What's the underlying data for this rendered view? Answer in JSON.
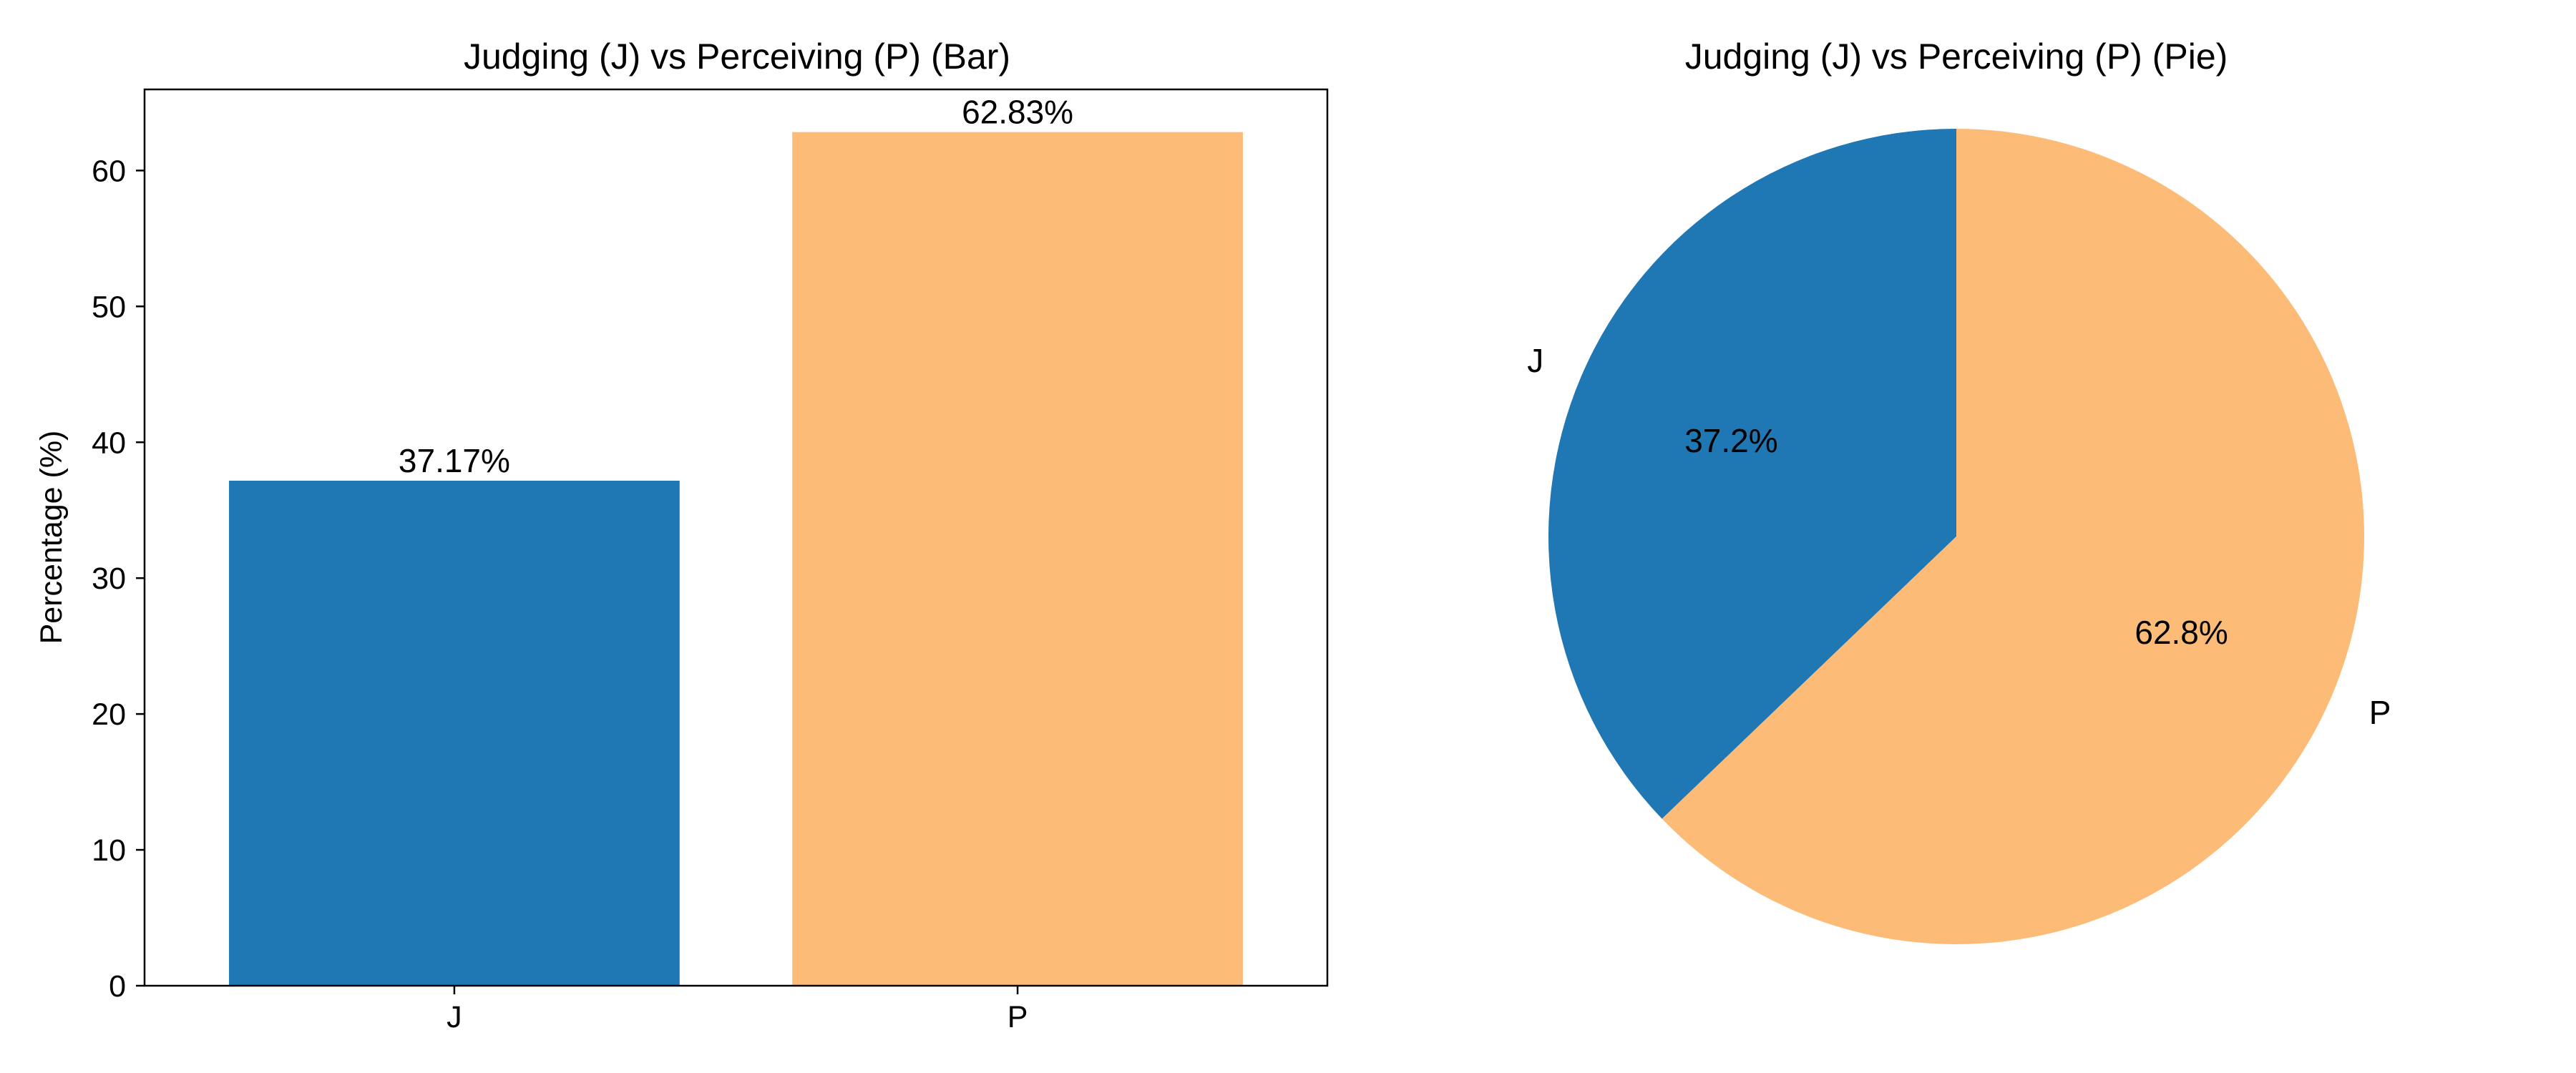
{
  "chart_data": [
    {
      "type": "bar",
      "title": "Judging (J) vs Perceiving (P) (Bar)",
      "xlabel": "",
      "ylabel": "Percentage (%)",
      "categories": [
        "J",
        "P"
      ],
      "values": [
        37.17,
        62.83
      ],
      "value_labels": [
        "37.17%",
        "62.83%"
      ],
      "colors": [
        "#1f77b4",
        "#fdbb78"
      ],
      "ylim": [
        0,
        65.97
      ],
      "yticks": [
        0,
        10,
        20,
        30,
        40,
        50,
        60
      ],
      "ytick_labels": [
        "0",
        "10",
        "20",
        "30",
        "40",
        "50",
        "60"
      ],
      "grid": false,
      "legend": "none"
    },
    {
      "type": "pie",
      "title": "Judging (J) vs Perceiving (P) (Pie)",
      "labels": [
        "J",
        "P"
      ],
      "values": [
        37.17,
        62.83
      ],
      "pct_labels": [
        "37.2%",
        "62.8%"
      ],
      "colors": [
        "#1f77b4",
        "#fdbb78"
      ],
      "start_angle": 90,
      "direction": "counterclockwise",
      "legend": "none"
    }
  ]
}
